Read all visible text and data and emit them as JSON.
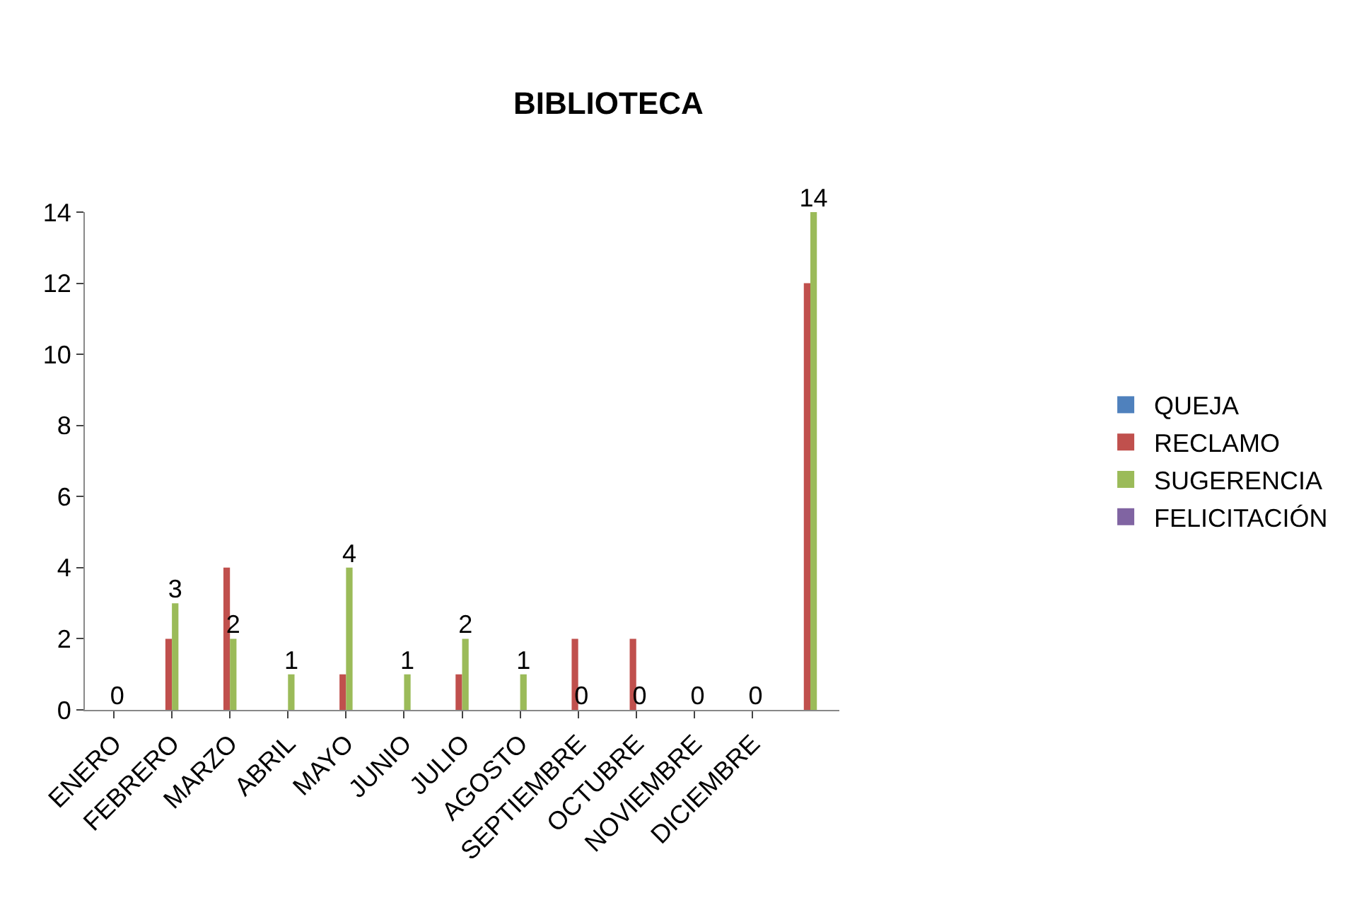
{
  "chart_data": {
    "type": "bar",
    "title": "BIBLIOTECA",
    "categories": [
      "ENERO",
      "FEBRERO",
      "MARZO",
      "ABRIL",
      "MAYO",
      "JUNIO",
      "JULIO",
      "AGOSTO",
      "SEPTIEMBRE",
      "OCTUBRE",
      "NOVIEMBRE",
      "DICIEMBRE",
      null
    ],
    "series": [
      {
        "name": "QUEJA",
        "color": "#4f81bd",
        "values": [
          0,
          0,
          0,
          0,
          0,
          0,
          0,
          0,
          0,
          0,
          0,
          0,
          0
        ]
      },
      {
        "name": "RECLAMO",
        "color": "#c0504d",
        "values": [
          0,
          2,
          4,
          0,
          1,
          0,
          1,
          0,
          2,
          2,
          0,
          0,
          12
        ]
      },
      {
        "name": "SUGERENCIA",
        "color": "#9bbb59",
        "values": [
          0,
          3,
          2,
          1,
          4,
          1,
          2,
          1,
          0,
          0,
          0,
          0,
          14
        ],
        "value_labels": [
          "0",
          "3",
          "2",
          "1",
          "4",
          "1",
          "2",
          "1",
          "0",
          "0",
          "0",
          "0",
          "14"
        ]
      },
      {
        "name": "FELICITACIÓN",
        "color": "#8064a2",
        "values": [
          0,
          0,
          0,
          0,
          0,
          0,
          0,
          0,
          0,
          0,
          0,
          0,
          0
        ]
      }
    ],
    "ylim": [
      0,
      14
    ],
    "yticks": [
      0,
      2,
      4,
      6,
      8,
      10,
      12,
      14
    ],
    "legend": "right"
  }
}
